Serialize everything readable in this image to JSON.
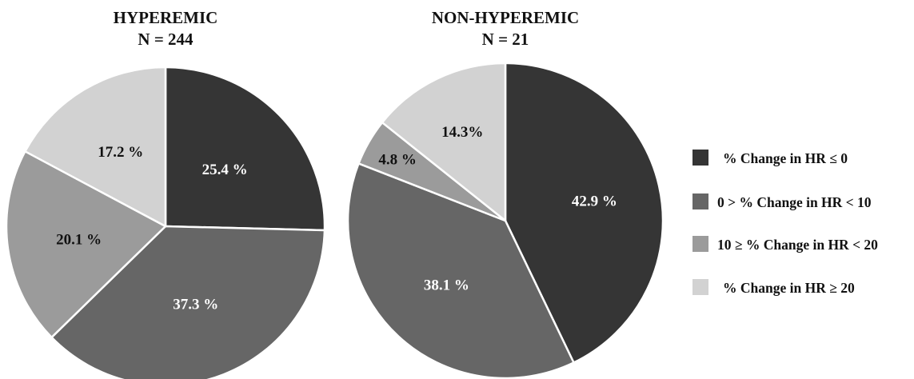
{
  "chart_data": [
    {
      "type": "pie",
      "title": "HYPEREMIC",
      "subtitle": "N = 244",
      "slices": [
        {
          "category": "% Change in HR ≤ 0",
          "value": 25.4,
          "label": "25.4 %"
        },
        {
          "category": "0 > % Change in HR < 10",
          "value": 37.3,
          "label": "37.3 %"
        },
        {
          "category": "10 ≥ % Change in HR < 20",
          "value": 20.1,
          "label": "20.1 %"
        },
        {
          "category": "% Change in HR ≥ 20",
          "value": 17.2,
          "label": "17.2 %"
        }
      ]
    },
    {
      "type": "pie",
      "title": "NON-HYPEREMIC",
      "subtitle": "N = 21",
      "slices": [
        {
          "category": "% Change in HR ≤ 0",
          "value": 42.9,
          "label": "42.9 %"
        },
        {
          "category": "0 > % Change in HR < 10",
          "value": 38.1,
          "label": "38.1 %"
        },
        {
          "category": "10 ≥ % Change in HR < 20",
          "value": 4.8,
          "label": "4.8 %"
        },
        {
          "category": "% Change in HR ≥ 20",
          "value": 14.3,
          "label": "14.3%"
        }
      ]
    }
  ],
  "legend": {
    "placement": "right",
    "items": [
      {
        "label": "% Change in HR ≤ 0",
        "color": "#353535"
      },
      {
        "label": "0 > % Change in HR < 10",
        "color": "#666666"
      },
      {
        "label": "10 ≥ % Change in HR < 20",
        "color": "#9b9b9b"
      },
      {
        "label": "% Change in HR ≥ 20",
        "color": "#d2d2d2"
      }
    ]
  },
  "colors": {
    "slice_fills": [
      "#353535",
      "#666666",
      "#9b9b9b",
      "#d2d2d2"
    ],
    "label_light": "#ffffff",
    "label_dark": "#111111",
    "slice_border": "#ffffff"
  }
}
